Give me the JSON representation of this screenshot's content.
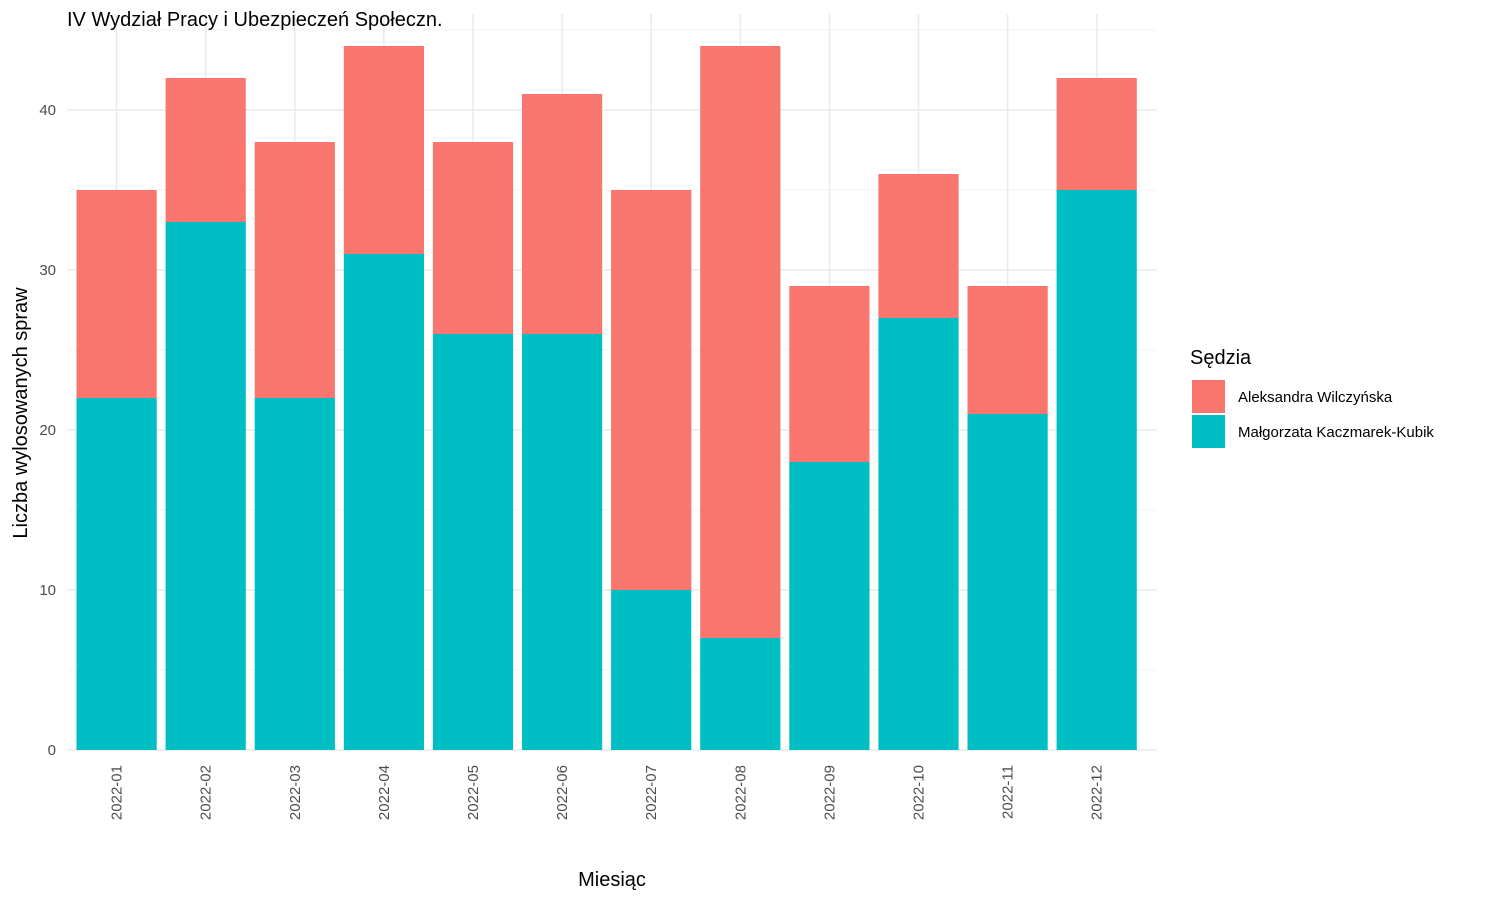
{
  "chart_data": {
    "type": "bar",
    "stacked": true,
    "title": "IV Wydział Pracy i Ubezpieczeń Społeczn.",
    "xlabel": "Miesiąc",
    "ylabel": "Liczba wylosowanych spraw",
    "ylim": [
      0,
      45
    ],
    "yticks": [
      0,
      10,
      20,
      30,
      40
    ],
    "grid": true,
    "legend_title": "Sędzia",
    "legend_position": "right",
    "categories": [
      "2022-01",
      "2022-02",
      "2022-03",
      "2022-04",
      "2022-05",
      "2022-06",
      "2022-07",
      "2022-08",
      "2022-09",
      "2022-10",
      "2022-11",
      "2022-12"
    ],
    "series": [
      {
        "name": "Aleksandra Wilczyńska",
        "color": "#F8766D",
        "values": [
          13,
          9,
          16,
          13,
          12,
          15,
          25,
          37,
          11,
          9,
          8,
          7
        ]
      },
      {
        "name": "Małgorzata Kaczmarek-Kubik",
        "color": "#00BFC4",
        "values": [
          22,
          33,
          22,
          31,
          26,
          26,
          10,
          7,
          18,
          27,
          21,
          35
        ]
      }
    ]
  }
}
